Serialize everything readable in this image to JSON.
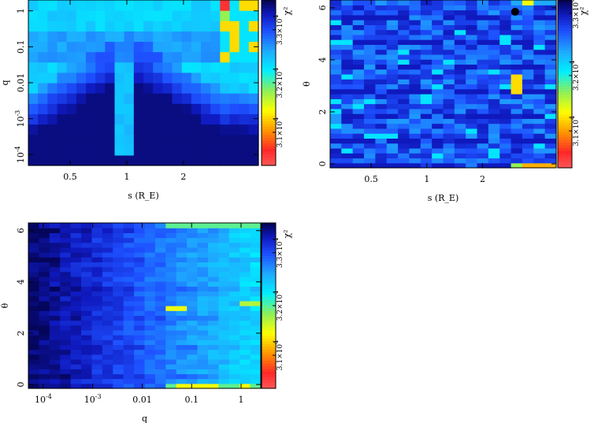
{
  "chart_data": [
    {
      "type": "heatmap",
      "title": "",
      "xlabel": "s (R_E)",
      "ylabel": "q",
      "x_scale": "log",
      "y_scale": "log",
      "xlim": [
        0.3,
        5.0
      ],
      "ylim": [
        5e-05,
        2
      ],
      "xticks": [
        {
          "value": 0.5,
          "label": "0.5"
        },
        {
          "value": 1,
          "label": "1"
        },
        {
          "value": 2,
          "label": "2"
        }
      ],
      "yticks": [
        {
          "value": 0.0001,
          "label": "10^-4"
        },
        {
          "value": 0.001,
          "label": "10^-3"
        },
        {
          "value": 0.01,
          "label": "0.01"
        },
        {
          "value": 0.1,
          "label": "0.1"
        },
        {
          "value": 1,
          "label": "1"
        }
      ],
      "colorbar": {
        "label": "χ²",
        "ticks": [
          {
            "value": 0.82,
            "label": "3.3×10^4"
          },
          {
            "value": 0.5,
            "label": "3.2×10^4"
          },
          {
            "value": 0.2,
            "label": "3.1×10^4"
          }
        ]
      },
      "z_description": "best chi-squared over theta for each (s, q)",
      "grid": false,
      "legend": "none"
    },
    {
      "type": "heatmap",
      "title": "",
      "xlabel": "s (R_E)",
      "ylabel": "θ",
      "x_scale": "log",
      "y_scale": "linear",
      "xlim": [
        0.3,
        5.0
      ],
      "ylim": [
        -0.15,
        6.3
      ],
      "xticks": [
        {
          "value": 0.5,
          "label": "0.5"
        },
        {
          "value": 1,
          "label": "1"
        },
        {
          "value": 2,
          "label": "2"
        }
      ],
      "yticks": [
        {
          "value": 0,
          "label": "0"
        },
        {
          "value": 2,
          "label": "2"
        },
        {
          "value": 4,
          "label": "4"
        },
        {
          "value": 6,
          "label": "6"
        }
      ],
      "colorbar": {
        "label": "χ²",
        "ticks": [
          {
            "value": 0.92,
            "label": "3.3×10^4"
          },
          {
            "value": 0.55,
            "label": "3.2×10^4"
          },
          {
            "value": 0.22,
            "label": "3.1×10^4"
          }
        ]
      },
      "marker": {
        "x": 3.0,
        "y": 5.85,
        "style": "filled black circle"
      },
      "grid": false,
      "legend": "none"
    },
    {
      "type": "heatmap",
      "title": "",
      "xlabel": "q",
      "ylabel": "θ",
      "x_scale": "log",
      "y_scale": "linear",
      "xlim": [
        5e-05,
        2.5
      ],
      "ylim": [
        -0.15,
        6.3
      ],
      "xticks": [
        {
          "value": 0.0001,
          "label": "10^-4"
        },
        {
          "value": 0.001,
          "label": "10^-3"
        },
        {
          "value": 0.01,
          "label": "0.01"
        },
        {
          "value": 0.1,
          "label": "0.1"
        },
        {
          "value": 1,
          "label": "1"
        }
      ],
      "yticks": [
        {
          "value": 0,
          "label": "0"
        },
        {
          "value": 2,
          "label": "2"
        },
        {
          "value": 4,
          "label": "4"
        },
        {
          "value": 6,
          "label": "6"
        }
      ],
      "colorbar": {
        "label": "χ²",
        "ticks": [
          {
            "value": 0.82,
            "label": "3.3×10^4"
          },
          {
            "value": 0.5,
            "label": "3.2×10^4"
          },
          {
            "value": 0.2,
            "label": "3.1×10^4"
          }
        ]
      },
      "grid": false,
      "legend": "none"
    }
  ]
}
